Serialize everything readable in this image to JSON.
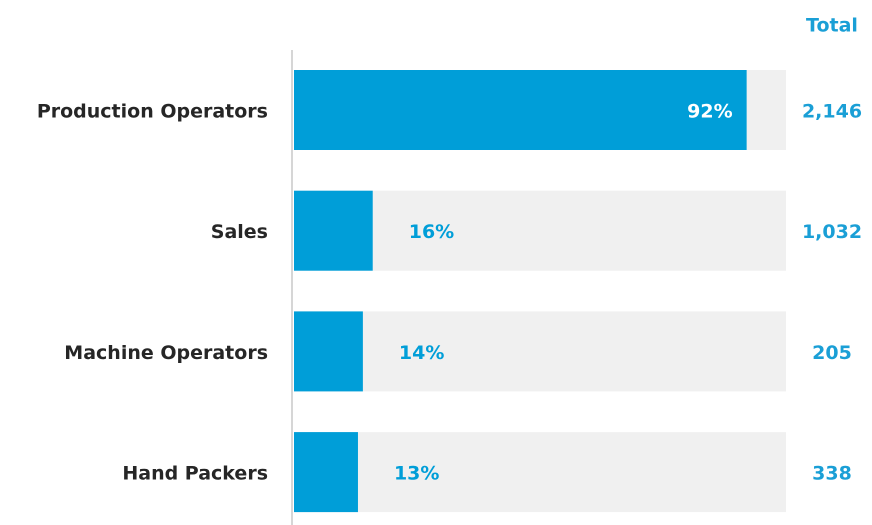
{
  "chart_data": {
    "type": "hbar",
    "categories": [
      "Production Operators",
      "Sales",
      "Machine Operators",
      "Hand Packers"
    ],
    "values": [
      92,
      16,
      14,
      13
    ],
    "value_labels": [
      "92%",
      "16%",
      "14%",
      "13%"
    ],
    "color": "#009ed8",
    "track_color": "#f0f0f0",
    "xlim": [
      0,
      100
    ],
    "totals": {
      "title": "Total",
      "values": [
        2146,
        1032,
        205,
        338
      ],
      "value_labels": [
        "2,146",
        "1,032",
        "205",
        "338"
      ],
      "color": "#1a9fd6"
    }
  }
}
